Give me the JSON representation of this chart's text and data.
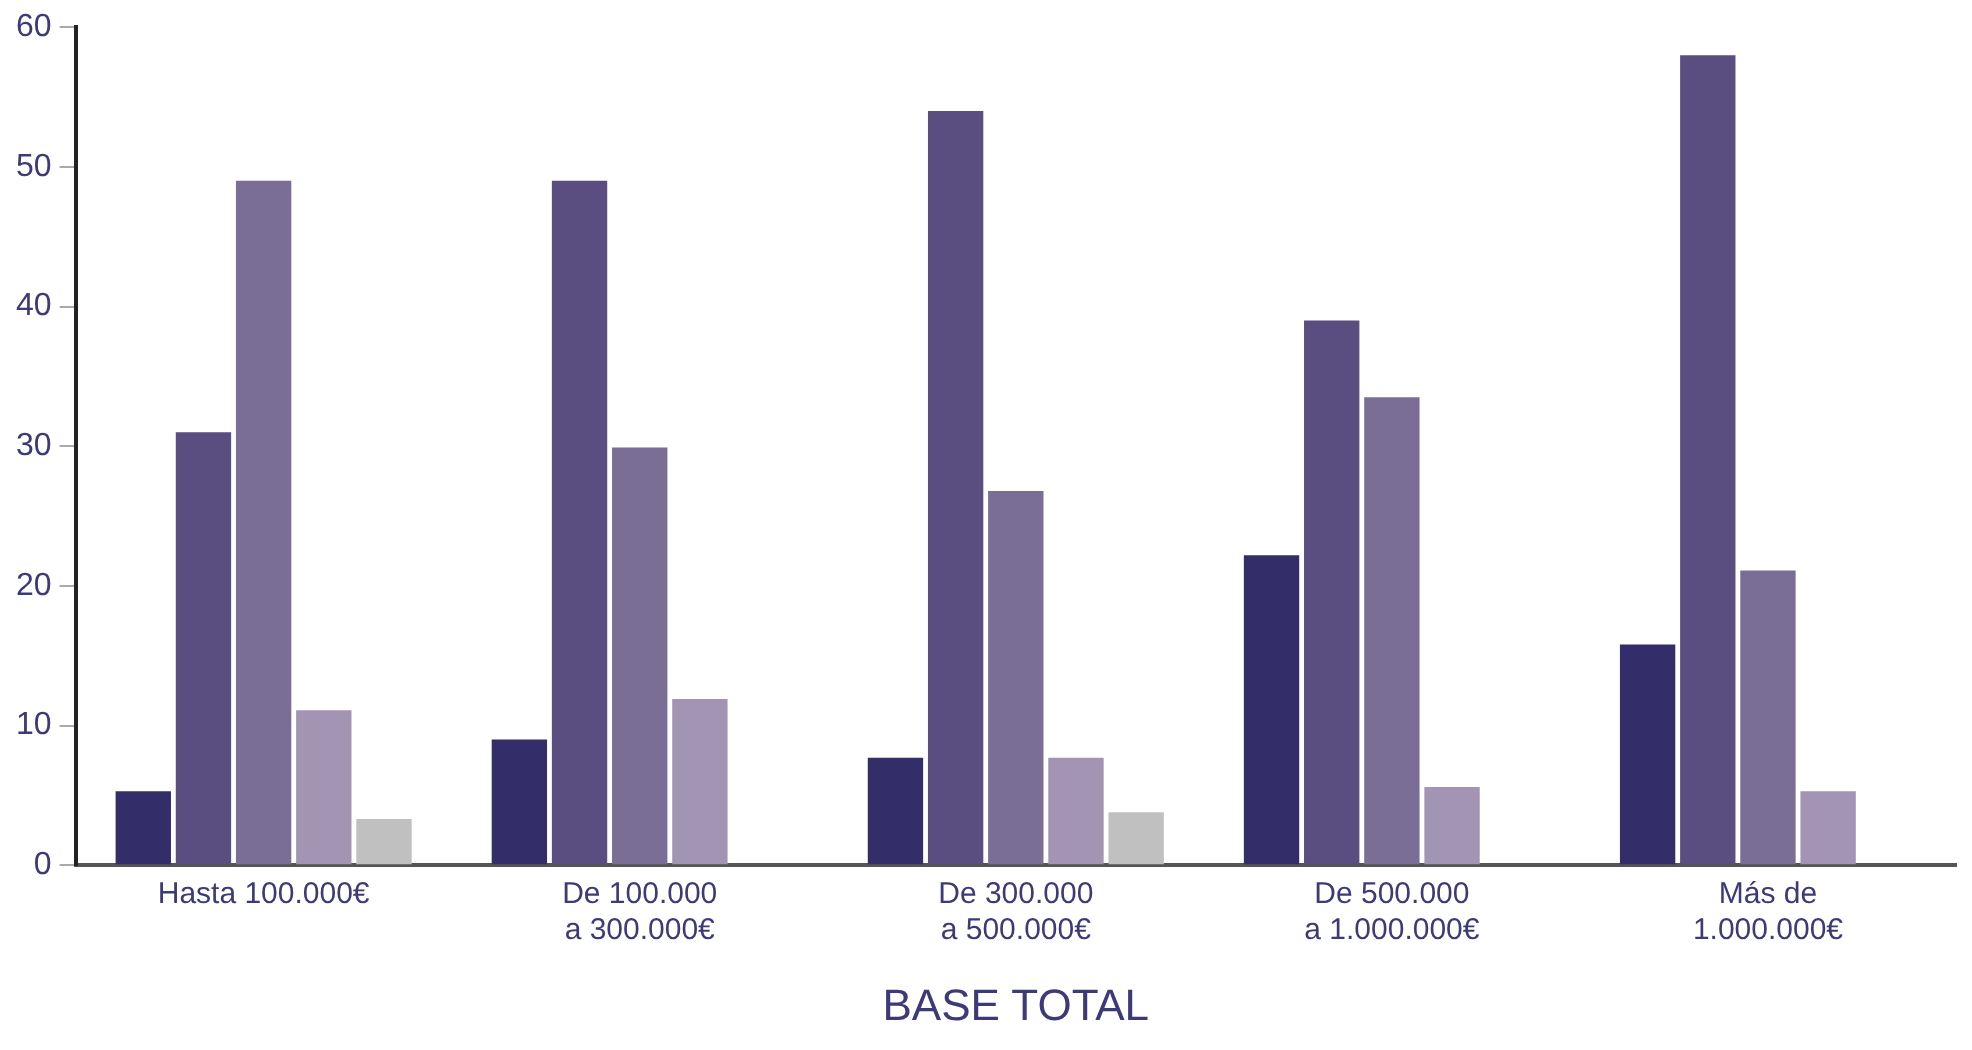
{
  "chart_data": {
    "type": "bar",
    "categories": [
      "Hasta 100.000€",
      "De 100.000\na 300.000€",
      "De 300.000\na 500.000€",
      "De 500.000\na 1.000.000€",
      "Más de\n1.000.000€"
    ],
    "xlabel": "BASE TOTAL",
    "series": [
      {
        "color": "#332d69",
        "values": [
          5.3,
          9.0,
          7.7,
          22.2,
          15.8
        ]
      },
      {
        "color": "#5a4d80",
        "values": [
          31.0,
          49.0,
          54.0,
          39.0,
          58.0
        ]
      },
      {
        "color": "#7a6d96",
        "values": [
          49.0,
          29.9,
          26.8,
          33.5,
          21.1
        ]
      },
      {
        "color": "#a394b4",
        "values": [
          11.1,
          11.9,
          7.7,
          5.6,
          5.3
        ]
      },
      {
        "color": "#c0c0c0",
        "values": [
          3.3,
          null,
          3.8,
          null,
          null
        ]
      }
    ],
    "ylim": [
      0,
      60
    ],
    "yticks": [
      0,
      10,
      20,
      30,
      40,
      50,
      60
    ],
    "grid": false,
    "legend": false
  }
}
